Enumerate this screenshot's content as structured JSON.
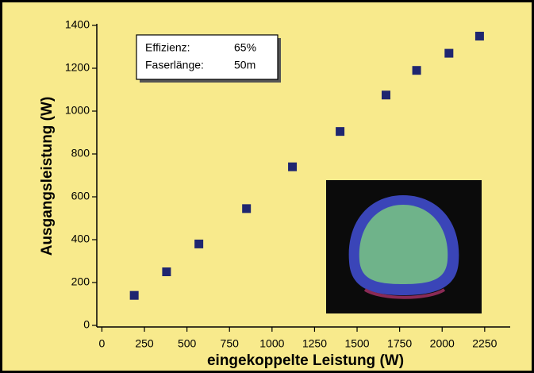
{
  "chart_data": {
    "type": "scatter",
    "x_label": "eingekoppelte Leistung (W)",
    "y_label": "Ausgangsleistung (W)",
    "x": [
      190,
      380,
      570,
      850,
      1120,
      1400,
      1670,
      1850,
      2040,
      2220
    ],
    "values": [
      140,
      250,
      380,
      545,
      740,
      905,
      1075,
      1190,
      1270,
      1350
    ],
    "color": "#1f2670",
    "xlim": [
      -30,
      2400
    ],
    "xticks": [
      0,
      250,
      500,
      750,
      1000,
      1250,
      1500,
      1750,
      2000,
      2250
    ],
    "ylim": [
      0,
      1400
    ],
    "yticks": [
      0,
      200,
      400,
      600,
      800,
      1000,
      1200,
      1400
    ],
    "grid": false,
    "annotations": [
      {
        "label": "Effizienz:",
        "value": "65%"
      },
      {
        "label": "Faserlänge:",
        "value": "50m"
      }
    ]
  }
}
